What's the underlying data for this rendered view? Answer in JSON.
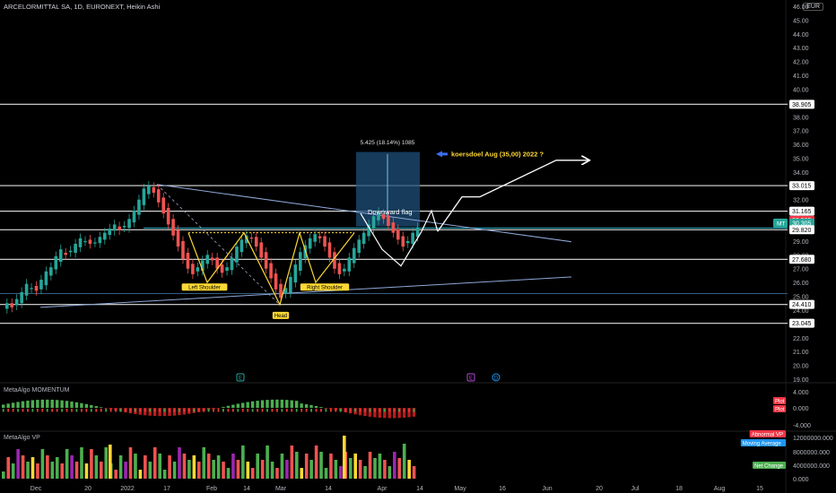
{
  "header": {
    "title": "ARCELORMITTAL SA, 1D, EURONEXT, Heikin Ashi",
    "currency": "EUR"
  },
  "panes": {
    "momentum_label": "MetaAlgo MOMENTUM",
    "vp_label": "MetaAlgo VP"
  },
  "axis": {
    "price_ticks": [
      "46.00",
      "45.00",
      "44.00",
      "43.00",
      "42.00",
      "41.00",
      "40.00",
      "39.00",
      "38.00",
      "37.00",
      "36.00",
      "35.00",
      "34.00",
      "33.00",
      "32.00",
      "31.00",
      "30.00",
      "29.00",
      "28.00",
      "27.00",
      "26.00",
      "25.00",
      "24.00",
      "23.00",
      "22.00",
      "21.00",
      "20.00",
      "19.00"
    ],
    "momentum_ticks": [
      "4.000",
      "0.000",
      "-4.000"
    ],
    "vp_ticks": [
      "12000000.000",
      "8000000.000",
      "4000000.000",
      "0.000"
    ],
    "time_ticks": [
      "Dec",
      "20",
      "2022",
      "17",
      "Feb",
      "14",
      "Mar",
      "14",
      "Apr",
      "14",
      "May",
      "16",
      "Jun",
      "20",
      "Jul",
      "18",
      "Aug",
      "15"
    ]
  },
  "price_tags": [
    {
      "label": "38.905",
      "style": "white"
    },
    {
      "label": "33.015",
      "style": "white"
    },
    {
      "label": "31.165",
      "style": "white"
    },
    {
      "label": "30.505",
      "style": "red"
    },
    {
      "label": "30.305",
      "style": "teal",
      "prefix": "MT"
    },
    {
      "label": "29.820",
      "style": "white"
    },
    {
      "label": "27.680",
      "style": "white"
    },
    {
      "label": "24.410",
      "style": "white"
    },
    {
      "label": "23.045",
      "style": "white"
    }
  ],
  "indicator_tags": {
    "momentum": [
      "Plot",
      "Plot"
    ],
    "vp": [
      "Abnormal VP",
      "Moving Average",
      "Net Change"
    ]
  },
  "annotations": {
    "range_stats": "5.425 (18.14%) 1085",
    "target_note": "koersdoel Aug (35,00)  2022 ?",
    "flag_label": "Downward flag",
    "left_shoulder": "Left Shoulder",
    "head": "Head",
    "right_shoulder": "Right Shoulder",
    "event_markers": [
      "E",
      "E",
      "D"
    ]
  },
  "colors": {
    "up": "#26a69a",
    "down": "#ef5350",
    "bull": "#4caf50",
    "bear": "#b71c1c",
    "yellow": "#fdd835",
    "blue_box": "#1e4f7a",
    "trend": "#8fa8d8",
    "teal": "#26a69a",
    "red": "#f23645"
  },
  "chart_data": {
    "type": "candlestick",
    "title": "ARCELORMITTAL SA, 1D, EURONEXT, Heikin Ashi",
    "ylim": [
      19,
      46.6
    ],
    "horizontal_levels": [
      38.905,
      33.015,
      31.165,
      29.82,
      27.68,
      24.41,
      23.045
    ],
    "current_price": 30.305,
    "series": [
      {
        "name": "Heikin Ashi (approx. closes)",
        "dates": [
          "2021-11-29",
          "2021-12-06",
          "2021-12-13",
          "2021-12-20",
          "2021-12-27",
          "2022-01-03",
          "2022-01-10",
          "2022-01-17",
          "2022-01-24",
          "2022-01-31",
          "2022-02-07",
          "2022-02-14",
          "2022-02-21",
          "2022-02-28",
          "2022-03-07",
          "2022-03-14",
          "2022-03-21",
          "2022-03-28",
          "2022-04-04",
          "2022-04-11"
        ],
        "close": [
          24.9,
          25.9,
          26.6,
          28.0,
          28.5,
          30.1,
          31.8,
          32.3,
          30.0,
          27.3,
          28.6,
          29.1,
          26.8,
          24.9,
          28.1,
          29.5,
          30.8,
          31.1,
          29.2,
          29.9
        ]
      }
    ],
    "projection": [
      [
        "2022-04-14",
        29.8
      ],
      [
        "2022-04-26",
        31.5
      ],
      [
        "2022-05-20",
        31.5
      ],
      [
        "2022-06-20",
        34.9
      ],
      [
        "2022-07-10",
        34.9
      ]
    ]
  }
}
